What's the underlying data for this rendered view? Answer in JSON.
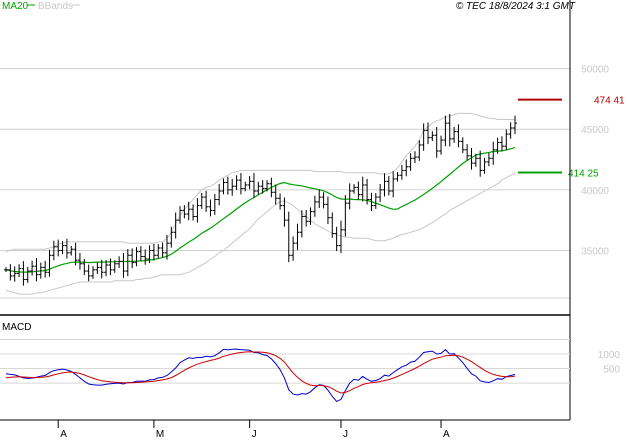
{
  "header": {
    "legend": [
      {
        "label": "MA20",
        "color": "#00a000"
      },
      {
        "label": "BBands",
        "color": "#c8c8c8"
      }
    ],
    "copyright": "© TEC 18/8/2024 3:1 GMT"
  },
  "chart_data": [
    {
      "type": "bar",
      "subtype": "ohlc",
      "ylim": [
        30500,
        54500
      ],
      "yticks": [
        {
          "value": 35000,
          "label": "35000"
        },
        {
          "value": 40000,
          "label": "40000"
        },
        {
          "value": 45000,
          "label": "45000"
        },
        {
          "value": 50000,
          "label": "50000"
        }
      ],
      "grid": true,
      "bar_color": "#000000",
      "ma_color": "#00a000",
      "band_color": "#c8c8c8",
      "levels": [
        {
          "label": "474 41",
          "value": 47441,
          "color": "#b00000"
        },
        {
          "label": "414 25",
          "value": 41425,
          "color": "#00a000"
        }
      ],
      "close": [
        33400,
        32900,
        33100,
        33500,
        32600,
        33300,
        33700,
        33000,
        33600,
        33200,
        34600,
        35300,
        35000,
        35400,
        34800,
        35100,
        34200,
        33900,
        33300,
        32900,
        33400,
        33600,
        33200,
        33800,
        33400,
        33900,
        34100,
        33300,
        34600,
        34000,
        34900,
        34500,
        34300,
        35000,
        34600,
        35200,
        34800,
        35600,
        36500,
        37500,
        38300,
        38000,
        38400,
        37800,
        38700,
        39400,
        38600,
        38300,
        39200,
        39900,
        40600,
        40000,
        40300,
        40800,
        40100,
        40400,
        40700,
        39900,
        40300,
        40100,
        40500,
        39800,
        39300,
        38700,
        37500,
        34600,
        35600,
        36500,
        37800,
        37400,
        38200,
        39000,
        39400,
        38800,
        37700,
        36400,
        35400,
        36700,
        38900,
        39900,
        40200,
        39600,
        40400,
        39200,
        38700,
        39400,
        40000,
        40700,
        39900,
        40900,
        41200,
        41600,
        41900,
        42600,
        42700,
        43700,
        44900,
        44300,
        44500,
        43200,
        44100,
        45500,
        44200,
        44800,
        44000,
        43300,
        42800,
        42200,
        42600,
        41600,
        42300,
        42600,
        43300,
        43900,
        43600,
        44600,
        45100,
        45500
      ],
      "ma20": [
        33400,
        33320,
        33260,
        33230,
        33210,
        33210,
        33240,
        33270,
        33310,
        33340,
        33450,
        33610,
        33730,
        33860,
        33930,
        34020,
        34040,
        34050,
        34030,
        34000,
        34010,
        34040,
        34040,
        34050,
        34060,
        34070,
        34090,
        34090,
        34100,
        34100,
        34120,
        34140,
        34160,
        34210,
        34250,
        34330,
        34410,
        34520,
        34700,
        34930,
        35200,
        35440,
        35690,
        35900,
        36140,
        36420,
        36620,
        36830,
        37080,
        37360,
        37620,
        37880,
        38140,
        38420,
        38670,
        38930,
        39160,
        39370,
        39580,
        39790,
        40010,
        40200,
        40370,
        40520,
        40600,
        40490,
        40420,
        40370,
        40330,
        40240,
        40150,
        40080,
        40010,
        39920,
        39760,
        39570,
        39370,
        39240,
        39220,
        39240,
        39200,
        39190,
        39180,
        39120,
        39030,
        38900,
        38770,
        38640,
        38500,
        38390,
        38420,
        38620,
        38780,
        38990,
        39150,
        39380,
        39610,
        39860,
        40120,
        40400,
        40670,
        40980,
        41260,
        41580,
        41880,
        42180,
        42420,
        42650,
        42860,
        42950,
        43020,
        43080,
        43150,
        43190,
        43210,
        43290,
        43380,
        43480
      ],
      "bb_upper": [
        34900,
        35000,
        35100,
        35100,
        35100,
        35100,
        35100,
        35100,
        35100,
        35100,
        35200,
        35300,
        35500,
        35600,
        35700,
        35700,
        35700,
        35700,
        35700,
        35700,
        35700,
        35700,
        35700,
        35700,
        35700,
        35700,
        35700,
        35700,
        35600,
        35600,
        35600,
        35600,
        35600,
        35600,
        35600,
        35700,
        35700,
        36000,
        36500,
        37200,
        37900,
        38400,
        38800,
        39200,
        39600,
        40000,
        40200,
        40300,
        40500,
        40800,
        41000,
        41200,
        41400,
        41500,
        41600,
        41600,
        41600,
        41600,
        41600,
        41600,
        41600,
        41600,
        41600,
        41600,
        41600,
        41600,
        41600,
        41600,
        41600,
        41600,
        41600,
        41500,
        41500,
        41500,
        41500,
        41500,
        41500,
        41500,
        41400,
        41400,
        41400,
        41400,
        41400,
        41400,
        41400,
        41400,
        41300,
        41300,
        41300,
        41500,
        41800,
        42300,
        42800,
        43200,
        43600,
        44100,
        44900,
        45200,
        45500,
        45700,
        45800,
        46000,
        46100,
        46200,
        46300,
        46300,
        46300,
        46300,
        46200,
        46100,
        46000,
        45900,
        45900,
        45800,
        45800,
        45800,
        45800,
        45800
      ],
      "bb_lower": [
        31700,
        31600,
        31500,
        31400,
        31400,
        31400,
        31400,
        31500,
        31500,
        31600,
        31700,
        31800,
        31900,
        32000,
        32100,
        32200,
        32300,
        32400,
        32400,
        32400,
        32400,
        32400,
        32400,
        32400,
        32400,
        32500,
        32500,
        32500,
        32500,
        32500,
        32600,
        32600,
        32700,
        32700,
        32800,
        32900,
        33000,
        33000,
        33000,
        33000,
        33000,
        33100,
        33200,
        33400,
        33600,
        33800,
        34000,
        34300,
        34500,
        34800,
        35000,
        35300,
        35600,
        35900,
        36200,
        36500,
        36800,
        37200,
        37600,
        37900,
        38200,
        38500,
        38800,
        39000,
        39100,
        38900,
        38700,
        38400,
        38100,
        37800,
        37500,
        37200,
        37000,
        36800,
        36600,
        36400,
        36300,
        36200,
        36100,
        36100,
        36000,
        36000,
        36000,
        36000,
        35900,
        35800,
        35800,
        35800,
        35900,
        36000,
        36200,
        36300,
        36400,
        36500,
        36600,
        36700,
        36900,
        37100,
        37300,
        37500,
        37800,
        38000,
        38300,
        38500,
        38700,
        38900,
        39100,
        39300,
        39500,
        39700,
        39900,
        40100,
        40300,
        40500,
        40800,
        41000,
        41200,
        41400
      ],
      "x_ticks": [
        {
          "label": "A",
          "index": 12
        },
        {
          "label": "M",
          "index": 34
        },
        {
          "label": "J",
          "index": 56
        },
        {
          "label": "J",
          "index": 77
        },
        {
          "label": "A",
          "index": 100
        }
      ]
    },
    {
      "type": "line",
      "title": "MACD",
      "ylim": [
        -1200,
        2100
      ],
      "yticks": [
        {
          "value": 500,
          "label": "500"
        },
        {
          "value": 1000,
          "label": "1000"
        }
      ],
      "grid": true,
      "series": [
        {
          "color": "#0000cc",
          "values": [
            320,
            300,
            280,
            230,
            180,
            160,
            170,
            200,
            240,
            260,
            360,
            430,
            460,
            480,
            450,
            400,
            300,
            180,
            60,
            -30,
            -60,
            -70,
            -70,
            -40,
            -20,
            -10,
            0,
            -30,
            20,
            20,
            60,
            70,
            60,
            110,
            120,
            180,
            200,
            260,
            380,
            520,
            700,
            790,
            870,
            850,
            880,
            880,
            920,
            900,
            940,
            1040,
            1160,
            1140,
            1160,
            1170,
            1150,
            1140,
            1130,
            1050,
            1040,
            980,
            950,
            830,
            670,
            460,
            180,
            -230,
            -380,
            -410,
            -360,
            -380,
            -300,
            -160,
            -60,
            -80,
            -240,
            -460,
            -630,
            -560,
            -260,
            0,
            130,
            100,
            230,
            130,
            60,
            90,
            150,
            270,
            240,
            360,
            460,
            560,
            610,
            720,
            750,
            890,
            1050,
            1080,
            1100,
            1000,
            1020,
            1150,
            1000,
            1010,
            870,
            700,
            510,
            320,
            240,
            80,
            40,
            20,
            80,
            150,
            130,
            220,
            260,
            300
          ]
        },
        {
          "color": "#cc0000",
          "values": [
            180,
            200,
            210,
            220,
            210,
            200,
            190,
            190,
            200,
            210,
            240,
            280,
            320,
            350,
            370,
            380,
            360,
            330,
            280,
            220,
            170,
            120,
            80,
            60,
            40,
            30,
            20,
            10,
            10,
            10,
            20,
            30,
            40,
            50,
            60,
            90,
            110,
            140,
            190,
            260,
            350,
            440,
            520,
            590,
            650,
            700,
            740,
            780,
            810,
            860,
            920,
            960,
            1000,
            1030,
            1050,
            1070,
            1080,
            1070,
            1070,
            1060,
            1040,
            1000,
            940,
            850,
            720,
            530,
            350,
            200,
            80,
            -10,
            -70,
            -90,
            -80,
            -90,
            -120,
            -190,
            -280,
            -340,
            -320,
            -260,
            -180,
            -120,
            -50,
            -10,
            10,
            30,
            50,
            90,
            120,
            170,
            230,
            300,
            360,
            430,
            500,
            580,
            670,
            750,
            820,
            860,
            890,
            940,
            950,
            960,
            940,
            890,
            820,
            740,
            640,
            540,
            440,
            360,
            300,
            260,
            230,
            220,
            220,
            240
          ]
        }
      ],
      "x_ticks": [
        {
          "label": "A",
          "index": 12
        },
        {
          "label": "M",
          "index": 34
        },
        {
          "label": "J",
          "index": 56
        },
        {
          "label": "J",
          "index": 77
        },
        {
          "label": "A",
          "index": 100
        }
      ]
    }
  ]
}
